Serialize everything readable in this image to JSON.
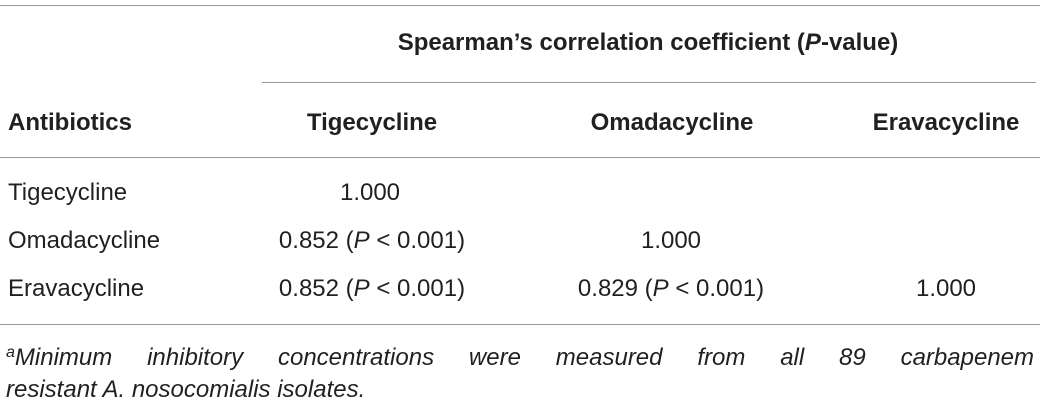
{
  "table": {
    "group_header": [
      "Spearman’s correlation coefficient (",
      "P",
      "-value)"
    ],
    "columns": [
      "Antibiotics",
      "Tigecycline",
      "Omadacycline",
      "Eravacycline"
    ],
    "rows": [
      {
        "label": "Tigecycline",
        "values": [
          "1.000"
        ]
      },
      {
        "label": "Omadacycline",
        "values": [
          [
            "0.852 (",
            "P",
            " < 0.001)"
          ],
          "1.000"
        ]
      },
      {
        "label": "Eravacycline",
        "values": [
          [
            "0.852 (",
            "P",
            " < 0.001)"
          ],
          [
            "0.829 (",
            "P",
            " < 0.001)"
          ],
          "1.000"
        ]
      }
    ]
  },
  "footnote": {
    "mark": "a",
    "lines": [
      "Minimum inhibitory concentrations were measured from all 89 carbapenem",
      "resistant A. nosocomialis isolates."
    ]
  }
}
